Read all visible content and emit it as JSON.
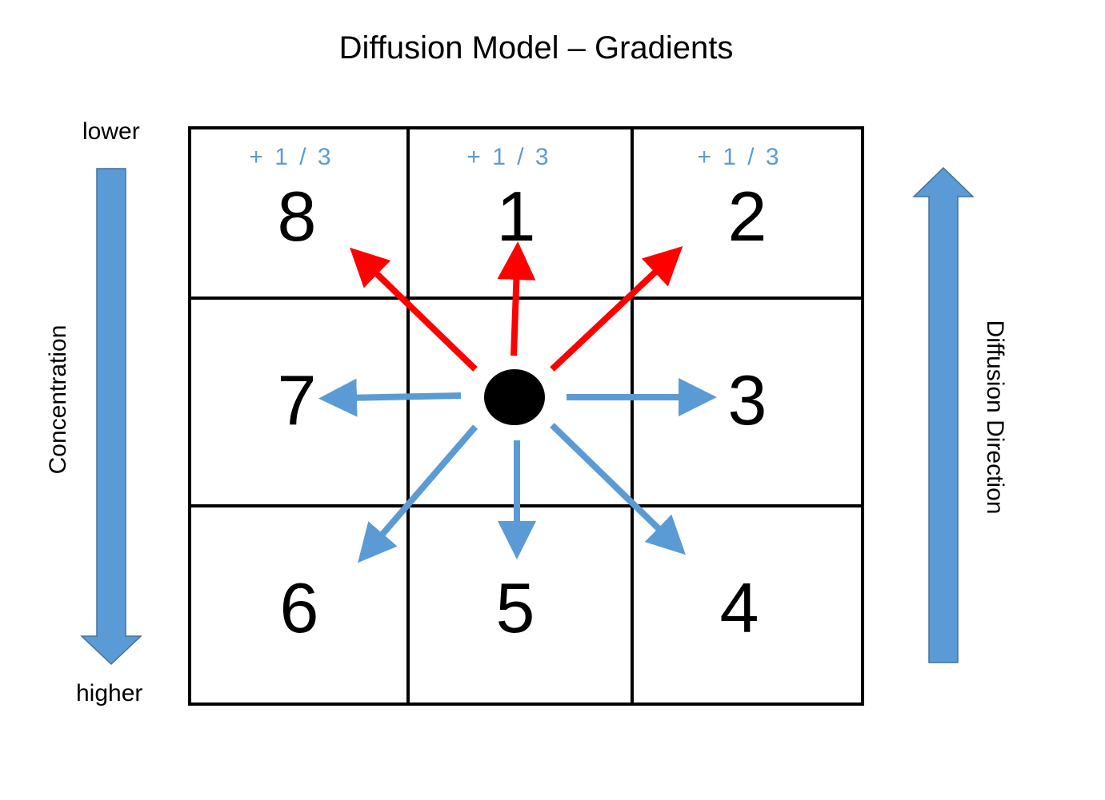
{
  "title": "Diffusion Model – Gradients",
  "concentration": {
    "label": "Concentration",
    "top": "lower",
    "bottom": "higher"
  },
  "direction": {
    "label": "Diffusion Direction"
  },
  "cells": [
    {
      "id": "top-left",
      "number": "8",
      "fraction": "+ 1 / 3"
    },
    {
      "id": "top-middle",
      "number": "1",
      "fraction": "+ 1 / 3"
    },
    {
      "id": "top-right",
      "number": "2",
      "fraction": "+ 1 / 3"
    },
    {
      "id": "middle-left",
      "number": "7"
    },
    {
      "id": "center",
      "number": ""
    },
    {
      "id": "middle-right",
      "number": "3"
    },
    {
      "id": "bottom-left",
      "number": "6"
    },
    {
      "id": "bottom-middle",
      "number": "5"
    },
    {
      "id": "bottom-right",
      "number": "4"
    }
  ],
  "colors": {
    "red": "#ff0000",
    "blue": "#5b9bd5",
    "grid": "#000000"
  }
}
